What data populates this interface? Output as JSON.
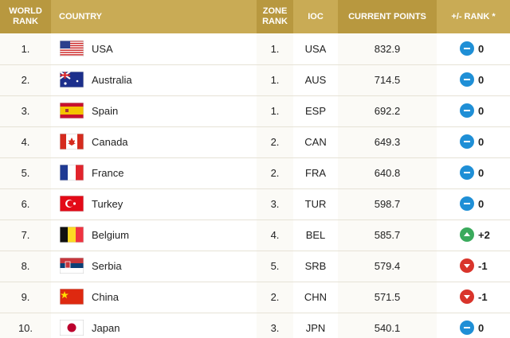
{
  "header": {
    "columns": [
      "WORLD RANK",
      "COUNTRY",
      "ZONE RANK",
      "IOC",
      "CURRENT POINTS",
      "+/- RANK *"
    ]
  },
  "table": {
    "rows": [
      [
        "1.",
        "USA",
        "1.",
        "USA",
        "832.9",
        "0"
      ],
      [
        "2.",
        "Australia",
        "1.",
        "AUS",
        "714.5",
        "0"
      ],
      [
        "3.",
        "Spain",
        "1.",
        "ESP",
        "692.2",
        "0"
      ],
      [
        "4.",
        "Canada",
        "2.",
        "CAN",
        "649.3",
        "0"
      ],
      [
        "5.",
        "France",
        "2.",
        "FRA",
        "640.8",
        "0"
      ],
      [
        "6.",
        "Turkey",
        "3.",
        "TUR",
        "598.7",
        "0"
      ],
      [
        "7.",
        "Belgium",
        "4.",
        "BEL",
        "585.7",
        "+2"
      ],
      [
        "8.",
        "Serbia",
        "5.",
        "SRB",
        "579.4",
        "-1"
      ],
      [
        "9.",
        "China",
        "2.",
        "CHN",
        "571.5",
        "-1"
      ],
      [
        "10.",
        "Japan",
        "3.",
        "JPN",
        "540.1",
        "0"
      ]
    ]
  }
}
